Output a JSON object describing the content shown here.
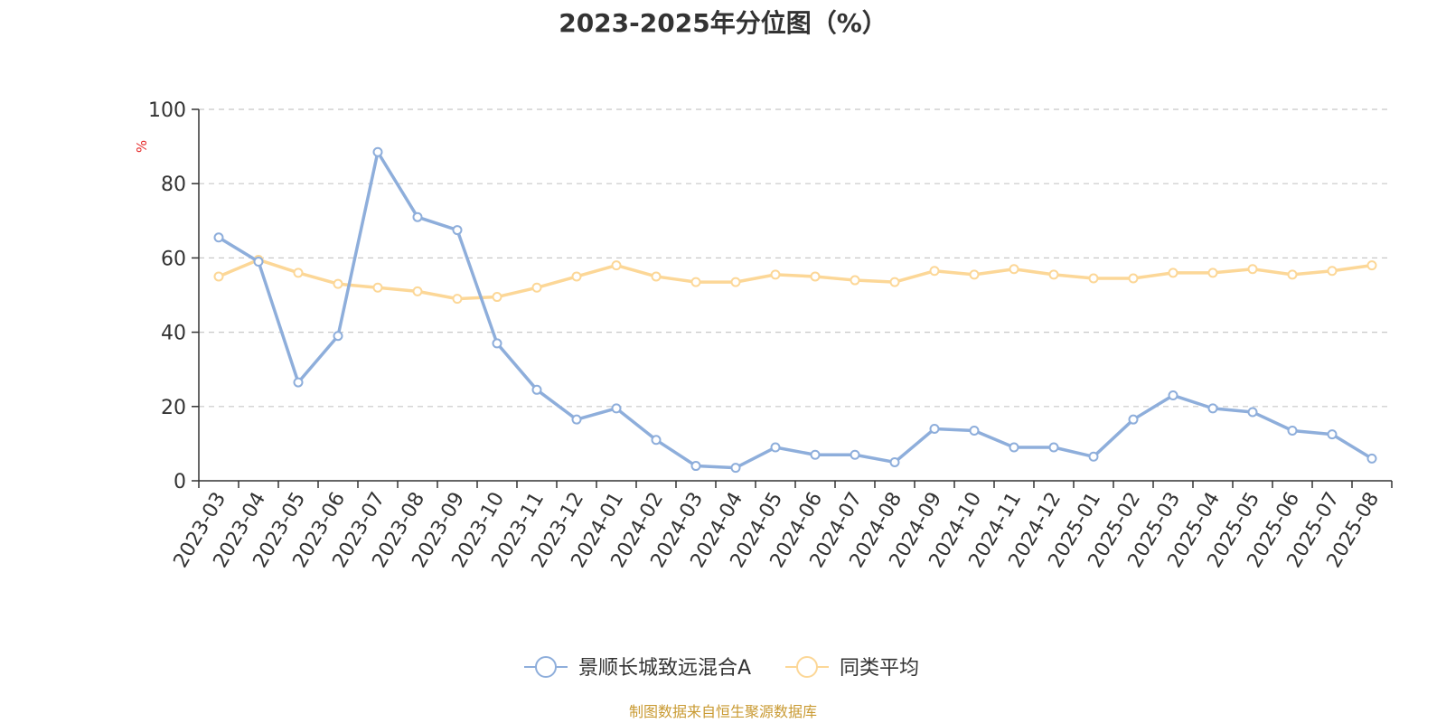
{
  "title": "2023-2025年分位图（%）",
  "source": "制图数据来自恒生聚源数据库",
  "colors": {
    "series_1": "#8eaedb",
    "series_2": "#fcd797",
    "unit_label": "#e52a2a",
    "source": "#c99a32",
    "grid": "#c8c8c8",
    "axis": "#333333"
  },
  "chart_data": {
    "type": "line",
    "title": "2023-2025年分位图（%）",
    "ylabel": "%",
    "ylim": [
      0,
      100
    ],
    "yticks": [
      0,
      20,
      40,
      60,
      80,
      100
    ],
    "grid": "y-dashed",
    "legend_position": "bottom-center",
    "x": [
      "2023-03",
      "2023-04",
      "2023-05",
      "2023-06",
      "2023-07",
      "2023-08",
      "2023-09",
      "2023-10",
      "2023-11",
      "2023-12",
      "2024-01",
      "2024-02",
      "2024-03",
      "2024-04",
      "2024-05",
      "2024-06",
      "2024-07",
      "2024-08",
      "2024-09",
      "2024-10",
      "2024-11",
      "2024-12",
      "2025-01",
      "2025-02",
      "2025-03",
      "2025-04",
      "2025-05",
      "2025-06",
      "2025-07",
      "2025-08"
    ],
    "series": [
      {
        "name": "景顺长城致远混合A",
        "values": [
          65.5,
          59.0,
          26.5,
          39.0,
          88.5,
          71.0,
          67.5,
          37.0,
          24.5,
          16.5,
          19.5,
          11.0,
          4.0,
          3.5,
          9.0,
          7.0,
          7.0,
          5.0,
          14.0,
          13.5,
          9.0,
          9.0,
          6.5,
          16.5,
          23.0,
          19.5,
          18.5,
          13.5,
          12.5,
          6.0
        ]
      },
      {
        "name": "同类平均",
        "values": [
          55.0,
          59.5,
          56.0,
          53.0,
          52.0,
          51.0,
          49.0,
          49.5,
          52.0,
          55.0,
          58.0,
          55.0,
          53.5,
          53.5,
          55.5,
          55.0,
          54.0,
          53.5,
          56.5,
          55.5,
          57.0,
          55.5,
          54.5,
          54.5,
          56.0,
          56.0,
          57.0,
          55.5,
          56.5,
          58.0
        ]
      }
    ]
  }
}
